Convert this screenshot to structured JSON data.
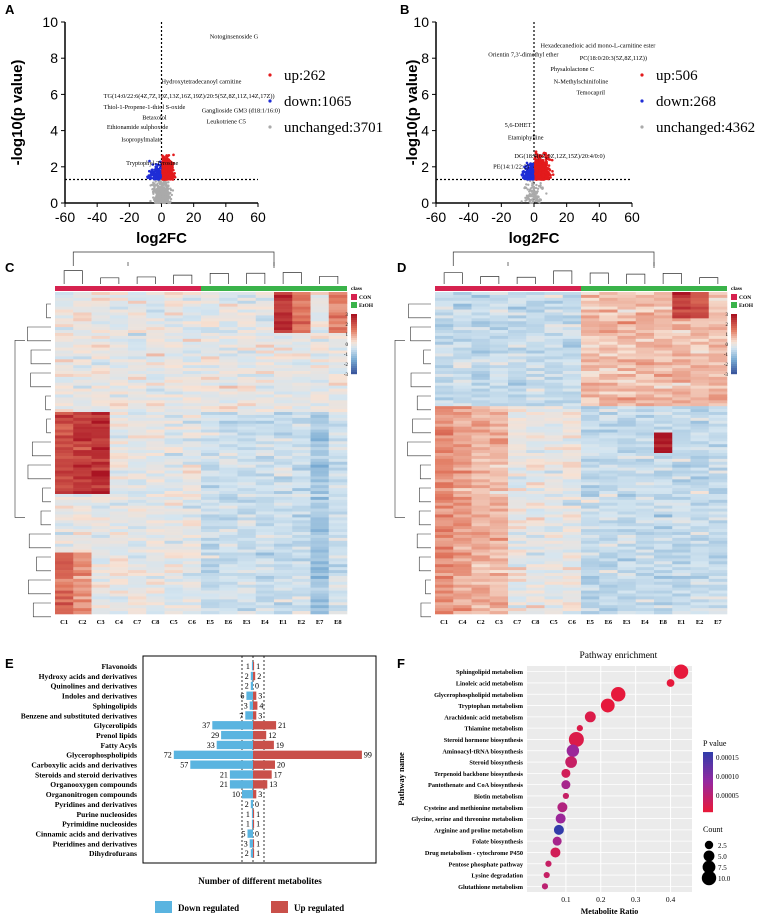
{
  "panels": {
    "A": {
      "label": "A",
      "chart_data": {
        "type": "scatter",
        "title": "",
        "xlabel": "log2FC",
        "ylabel": "-log10(p value)",
        "xlim": [
          -60,
          60
        ],
        "ylim": [
          0,
          10
        ],
        "xticks": [
          "-60",
          "-40",
          "-20",
          "0",
          "20",
          "40",
          "60"
        ],
        "yticks": [
          "0",
          "2",
          "4",
          "6",
          "8",
          "10"
        ],
        "threshold_y": 1.3,
        "legend": [
          {
            "label": "up:262",
            "color": "#e31a1c"
          },
          {
            "label": "down:1065",
            "color": "#1f2dd6"
          },
          {
            "label": "unchanged:3701",
            "color": "#aaaaaa"
          }
        ],
        "annotations": [
          {
            "text": "Notoginsenoside G",
            "x": 30,
            "y": 9.1
          },
          {
            "text": "Hydroxytetradecanoyl carnitine",
            "x": 0,
            "y": 6.6
          },
          {
            "text": "TG(14:0/22:6(4Z,7Z,10Z,13Z,16Z,19Z)/20:5(5Z,8Z,11Z,14Z,17Z))",
            "x": -36,
            "y": 5.8
          },
          {
            "text": "Thiol-1-Propene-1-thiol S-oxide",
            "x": -36,
            "y": 5.2
          },
          {
            "text": "Ganglioside GM3 (d18:1/16:0)",
            "x": 25,
            "y": 5.0
          },
          {
            "text": "Betaxolol",
            "x": -12,
            "y": 4.6
          },
          {
            "text": "Leukotriene C5",
            "x": 28,
            "y": 4.4
          },
          {
            "text": "Ethionamide sulphoxide",
            "x": -34,
            "y": 4.1
          },
          {
            "text": "Isopropylmalate",
            "x": -25,
            "y": 3.4
          },
          {
            "text": "Tryptophyl-Tyrosine",
            "x": -22,
            "y": 2.1
          }
        ]
      }
    },
    "B": {
      "label": "B",
      "chart_data": {
        "type": "scatter",
        "title": "",
        "xlabel": "log2FC",
        "ylabel": "-log10(p value)",
        "xlim": [
          -60,
          60
        ],
        "ylim": [
          0,
          10
        ],
        "xticks": [
          "-60",
          "-40",
          "-20",
          "0",
          "20",
          "40",
          "60"
        ],
        "yticks": [
          "0",
          "2",
          "4",
          "6",
          "8",
          "10"
        ],
        "threshold_y": 1.3,
        "legend": [
          {
            "label": "up:506",
            "color": "#e31a1c"
          },
          {
            "label": "down:268",
            "color": "#1f2dd6"
          },
          {
            "label": "unchanged:4362",
            "color": "#aaaaaa"
          }
        ],
        "annotations": [
          {
            "text": "Hexadecanedioic acid mono-L-carnitine ester",
            "x": 4,
            "y": 8.6
          },
          {
            "text": "Orientin 7,3'-dimethyl ether",
            "x": -28,
            "y": 8.1
          },
          {
            "text": "PC(18:0/20:3(5Z,8Z,11Z))",
            "x": 28,
            "y": 7.9
          },
          {
            "text": "Physalolactone C",
            "x": 10,
            "y": 7.3
          },
          {
            "text": "N-Methylschinifoline",
            "x": 12,
            "y": 6.6
          },
          {
            "text": "Temocapril",
            "x": 26,
            "y": 6.0
          },
          {
            "text": "5,6-DHET",
            "x": -18,
            "y": 4.2
          },
          {
            "text": "Etamiphylline",
            "x": -16,
            "y": 3.5
          },
          {
            "text": "DG(18:4(6Z,9Z,12Z,15Z)/20:4/0:0)",
            "x": -12,
            "y": 2.5
          },
          {
            "text": "PE(14:1/22:2)",
            "x": -25,
            "y": 1.9
          }
        ]
      }
    },
    "C": {
      "label": "C",
      "chart_data": {
        "type": "heatmap",
        "columns": [
          "C1",
          "C2",
          "C3",
          "C4",
          "C7",
          "C8",
          "C5",
          "C6",
          "E5",
          "E6",
          "E3",
          "E4",
          "E1",
          "E2",
          "E7",
          "E8"
        ],
        "groups": [
          {
            "name": "CON",
            "color": "#d6224f",
            "count": 8
          },
          {
            "name": "EtOH",
            "color": "#3ab34a",
            "count": 8
          }
        ],
        "legend_title": "class",
        "scale_ticks": [
          "3",
          "2",
          "1",
          "0",
          "-1",
          "-2",
          "-3"
        ],
        "range": [
          -3,
          3
        ]
      }
    },
    "D": {
      "label": "D",
      "chart_data": {
        "type": "heatmap",
        "columns": [
          "C1",
          "C4",
          "C2",
          "C3",
          "C7",
          "C8",
          "C5",
          "C6",
          "E5",
          "E6",
          "E3",
          "E4",
          "E8",
          "E1",
          "E2",
          "E7"
        ],
        "groups": [
          {
            "name": "CON",
            "color": "#d6224f",
            "count": 8
          },
          {
            "name": "EtOH",
            "color": "#3ab34a",
            "count": 8
          }
        ],
        "legend_title": "class",
        "scale_ticks": [
          "3",
          "2",
          "1",
          "0",
          "-1",
          "-2",
          "-3"
        ],
        "range": [
          -3,
          3
        ]
      }
    },
    "E": {
      "label": "E",
      "chart_data": {
        "type": "bar",
        "orientation": "diverging-horizontal",
        "xlabel": "Number of different metabolites",
        "categories": [
          "Flavonoids",
          "Hydroxy acids and derivatives",
          "Quinolines and derivatives",
          "Indoles and derivatives",
          "Sphingolipids",
          "Benzene and substituted derivatives",
          "Glycerolipids",
          "Prenol lipids",
          "Fatty Acyls",
          "Glycerophospholipids",
          "Carboxylic acids and derivatives",
          "Steroids and steroid derivatives",
          "Organooxygen compounds",
          "Organonitrogen compounds",
          "Pyridines and derivatives",
          "Purine nucleosides",
          "Pyrimidine nucleosides",
          "Cinnamic acids and derivatives",
          "Pteridines and derivatives",
          "Dihydrofurans"
        ],
        "series": [
          {
            "name": "Down regulated",
            "color": "#5ab4e0",
            "values": [
              1,
              2,
              2,
              6,
              3,
              7,
              37,
              29,
              33,
              72,
              57,
              21,
              21,
              10,
              2,
              1,
              1,
              5,
              3,
              2
            ]
          },
          {
            "name": "Up regulated",
            "color": "#c9504a",
            "values": [
              1,
              2,
              0,
              3,
              4,
              3,
              21,
              12,
              19,
              99,
              20,
              17,
              13,
              3,
              0,
              1,
              1,
              0,
              1,
              1
            ]
          }
        ]
      }
    },
    "F": {
      "label": "F",
      "chart_data": {
        "type": "scatter",
        "title": "Pathway enrichment",
        "xlabel": "Metabolite Ratio",
        "ylabel": "Pathway name",
        "xlim": [
          0,
          0.45
        ],
        "xticks": [
          "0.1",
          "0.2",
          "0.3",
          "0.4"
        ],
        "color_legend_title": "P value",
        "color_ticks": [
          "0.00015",
          "0.00010",
          "0.00005"
        ],
        "size_legend_title": "Count",
        "size_ticks": [
          "2.5",
          "5.0",
          "7.5",
          "10.0"
        ],
        "pathways": [
          "Sphingolipid metabolism",
          "Linoleic acid metabolism",
          "Glycerophospholipid metabolism",
          "Tryptophan metabolism",
          "Arachidonic acid metabolism",
          "Thiamine metabolism",
          "Steroid hormone biosynthesis",
          "Aminoacyl-tRNA biosynthesis",
          "Steroid biosynthesis",
          "Terpenoid backbone biosynthesis",
          "Pantothenate and CoA biosynthesis",
          "Biotin metabolism",
          "Cysteine and methionine metabolism",
          "Glycine, serine and threonine metabolism",
          "Arginine and proline metabolism",
          "Folate biosynthesis",
          "Drug metabolism - cytochrome P450",
          "Pentose phosphate pathway",
          "Lysine degradation",
          "Glutathione metabolism"
        ],
        "ratio": [
          0.43,
          0.4,
          0.25,
          0.22,
          0.17,
          0.14,
          0.13,
          0.12,
          0.115,
          0.1,
          0.1,
          0.1,
          0.09,
          0.085,
          0.08,
          0.075,
          0.07,
          0.05,
          0.045,
          0.04
        ],
        "count": [
          10,
          2,
          10,
          9,
          5,
          1,
          11,
          7,
          6,
          3,
          3,
          1,
          4,
          4,
          4,
          3,
          4,
          1,
          1,
          1
        ],
        "pvalue": [
          1e-05,
          1e-05,
          1e-05,
          1e-05,
          2e-05,
          2e-05,
          2e-05,
          8e-05,
          4e-05,
          3e-05,
          7e-05,
          4e-05,
          6e-05,
          8e-05,
          0.00016,
          7e-05,
          3e-05,
          4e-05,
          4e-05,
          5e-05
        ]
      }
    }
  }
}
